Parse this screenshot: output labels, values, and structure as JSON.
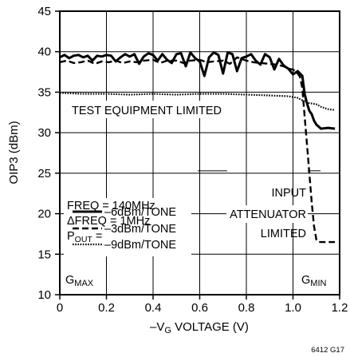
{
  "chart_data": {
    "type": "line",
    "xlabel_parts": [
      "–V",
      "G",
      " VOLTAGE (V)"
    ],
    "ylabel": "OIP3 (dBm)",
    "xlim": [
      0,
      1.2
    ],
    "ylim": [
      10,
      45
    ],
    "x_ticks": [
      0,
      0.2,
      0.4,
      0.6,
      0.8,
      1.0,
      1.2
    ],
    "x_tick_labels": [
      "0",
      "0.2",
      "0.4",
      "0.6",
      "0.8",
      "1.0",
      "1.2"
    ],
    "y_ticks": [
      10,
      15,
      20,
      25,
      30,
      35,
      40,
      45
    ],
    "y_tick_labels": [
      "10",
      "15",
      "20",
      "25",
      "30",
      "35",
      "40",
      "45"
    ],
    "grid": true,
    "figure_id": "6412 G17",
    "series": [
      {
        "name": "–6dBm/TONE",
        "style": "solid",
        "points": [
          [
            0.0,
            39.3
          ],
          [
            0.02,
            39.6
          ],
          [
            0.04,
            39.2
          ],
          [
            0.06,
            39.5
          ],
          [
            0.08,
            39.6
          ],
          [
            0.1,
            39.3
          ],
          [
            0.12,
            39.5
          ],
          [
            0.14,
            38.9
          ],
          [
            0.16,
            39.5
          ],
          [
            0.18,
            39.4
          ],
          [
            0.2,
            39.6
          ],
          [
            0.22,
            39.5
          ],
          [
            0.24,
            38.8
          ],
          [
            0.26,
            39.3
          ],
          [
            0.28,
            39.7
          ],
          [
            0.3,
            39.4
          ],
          [
            0.32,
            39.7
          ],
          [
            0.34,
            38.5
          ],
          [
            0.36,
            39.4
          ],
          [
            0.38,
            39.8
          ],
          [
            0.4,
            39.6
          ],
          [
            0.42,
            38.9
          ],
          [
            0.44,
            39.7
          ],
          [
            0.46,
            39.0
          ],
          [
            0.48,
            38.6
          ],
          [
            0.5,
            39.7
          ],
          [
            0.52,
            39.8
          ],
          [
            0.54,
            38.2
          ],
          [
            0.56,
            39.9
          ],
          [
            0.58,
            39.2
          ],
          [
            0.6,
            38.8
          ],
          [
            0.62,
            37.0
          ],
          [
            0.64,
            39.3
          ],
          [
            0.66,
            39.9
          ],
          [
            0.68,
            39.6
          ],
          [
            0.7,
            37.3
          ],
          [
            0.72,
            39.9
          ],
          [
            0.74,
            39.7
          ],
          [
            0.76,
            37.6
          ],
          [
            0.78,
            39.2
          ],
          [
            0.8,
            39.4
          ],
          [
            0.82,
            39.7
          ],
          [
            0.84,
            38.9
          ],
          [
            0.86,
            38.4
          ],
          [
            0.88,
            39.7
          ],
          [
            0.9,
            39.3
          ],
          [
            0.92,
            37.8
          ],
          [
            0.94,
            39.1
          ],
          [
            0.96,
            38.3
          ],
          [
            0.98,
            37.9
          ],
          [
            1.0,
            37.2
          ],
          [
            1.02,
            37.6
          ],
          [
            1.04,
            37.0
          ],
          [
            1.05,
            34.8
          ],
          [
            1.06,
            33.6
          ],
          [
            1.07,
            32.7
          ],
          [
            1.08,
            32.3
          ],
          [
            1.09,
            31.5
          ],
          [
            1.1,
            31.0
          ],
          [
            1.12,
            30.5
          ],
          [
            1.15,
            30.6
          ],
          [
            1.18,
            30.5
          ]
        ]
      },
      {
        "name": "–3dBm/TONE",
        "style": "dashed",
        "points": [
          [
            0.0,
            38.7
          ],
          [
            0.03,
            38.9
          ],
          [
            0.06,
            38.6
          ],
          [
            0.09,
            38.7
          ],
          [
            0.12,
            38.9
          ],
          [
            0.15,
            38.5
          ],
          [
            0.18,
            38.8
          ],
          [
            0.21,
            38.7
          ],
          [
            0.24,
            38.9
          ],
          [
            0.27,
            38.6
          ],
          [
            0.3,
            38.8
          ],
          [
            0.33,
            38.7
          ],
          [
            0.36,
            38.9
          ],
          [
            0.4,
            39.0
          ],
          [
            0.43,
            38.6
          ],
          [
            0.46,
            38.9
          ],
          [
            0.5,
            38.9
          ],
          [
            0.53,
            38.6
          ],
          [
            0.56,
            38.9
          ],
          [
            0.6,
            39.0
          ],
          [
            0.63,
            38.7
          ],
          [
            0.66,
            38.8
          ],
          [
            0.7,
            38.9
          ],
          [
            0.73,
            38.5
          ],
          [
            0.76,
            39.3
          ],
          [
            0.8,
            38.9
          ],
          [
            0.83,
            38.7
          ],
          [
            0.86,
            38.6
          ],
          [
            0.9,
            38.5
          ],
          [
            0.93,
            38.4
          ],
          [
            0.96,
            38.2
          ],
          [
            0.98,
            37.9
          ],
          [
            1.0,
            37.8
          ],
          [
            1.02,
            37.3
          ],
          [
            1.03,
            36.9
          ],
          [
            1.04,
            35.5
          ],
          [
            1.05,
            32.0
          ],
          [
            1.06,
            28.5
          ],
          [
            1.07,
            25.0
          ],
          [
            1.08,
            21.5
          ],
          [
            1.09,
            18.5
          ],
          [
            1.1,
            16.8
          ],
          [
            1.11,
            16.5
          ],
          [
            1.18,
            16.5
          ]
        ]
      },
      {
        "name": "–9dBm/TONE",
        "style": "dotted",
        "points": [
          [
            0.0,
            34.9
          ],
          [
            0.1,
            34.8
          ],
          [
            0.2,
            34.8
          ],
          [
            0.3,
            34.7
          ],
          [
            0.4,
            34.8
          ],
          [
            0.5,
            34.7
          ],
          [
            0.6,
            34.8
          ],
          [
            0.7,
            34.8
          ],
          [
            0.8,
            34.7
          ],
          [
            0.9,
            34.6
          ],
          [
            0.98,
            34.5
          ],
          [
            1.02,
            34.3
          ],
          [
            1.04,
            34.0
          ],
          [
            1.06,
            33.7
          ],
          [
            1.08,
            33.6
          ],
          [
            1.1,
            33.5
          ],
          [
            1.12,
            33.2
          ],
          [
            1.15,
            32.9
          ],
          [
            1.18,
            32.8
          ]
        ]
      }
    ],
    "annotations": {
      "test_equipment": "TEST EQUIPMENT LIMITED",
      "input_attenuator": [
        "INPUT",
        "ATTENUATOR",
        "LIMITED"
      ],
      "freq": "FREQ = 140MHz",
      "dfreq": "ΔFREQ = 1MHz",
      "pout_main": "P",
      "pout_sub": "OUT",
      "pout_eq": " =",
      "gmax_main": "G",
      "gmax_sub": "MAX",
      "gmin_main": "G",
      "gmin_sub": "MIN"
    }
  }
}
